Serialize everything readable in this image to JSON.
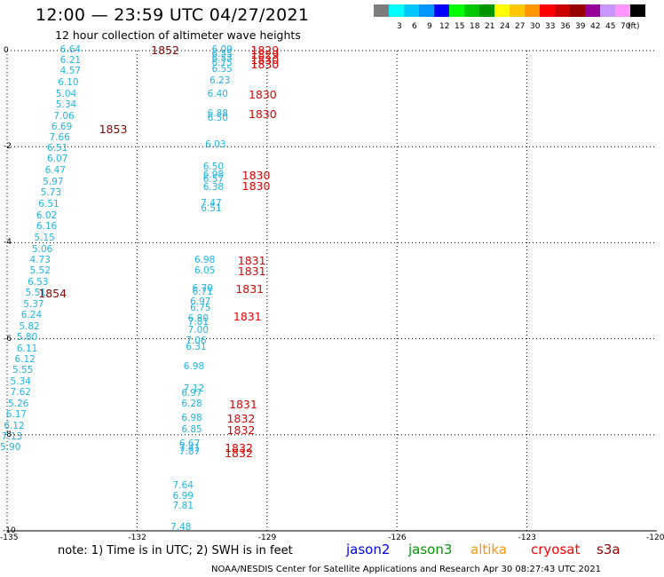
{
  "title": "12:00 — 23:59 UTC 04/27/2021",
  "subtitle": "12 hour collection of altimeter wave heights",
  "legend": {
    "unit": "(ft)",
    "swatches": [
      {
        "color": "#7d7d7d",
        "label": ""
      },
      {
        "color": "#00ffff",
        "label": "3"
      },
      {
        "color": "#00c8ff",
        "label": "6"
      },
      {
        "color": "#0096ff",
        "label": "9"
      },
      {
        "color": "#0000ff",
        "label": "12"
      },
      {
        "color": "#00ff00",
        "label": "15"
      },
      {
        "color": "#00c800",
        "label": "18"
      },
      {
        "color": "#009600",
        "label": "21"
      },
      {
        "color": "#ffff00",
        "label": "24"
      },
      {
        "color": "#ffc800",
        "label": "27"
      },
      {
        "color": "#ff9600",
        "label": "30"
      },
      {
        "color": "#ff0000",
        "label": "33"
      },
      {
        "color": "#c80000",
        "label": "36"
      },
      {
        "color": "#960000",
        "label": "39"
      },
      {
        "color": "#960096",
        "label": "42"
      },
      {
        "color": "#c896ff",
        "label": "45"
      },
      {
        "color": "#ff96ff",
        "label": "70"
      },
      {
        "color": "#000000",
        "label": ""
      }
    ]
  },
  "axes": {
    "y_ticks": [
      "0",
      "-2",
      "-4",
      "-6",
      "-8",
      "-10"
    ],
    "x_ticks": [
      "-135",
      "-132",
      "-129",
      "-126",
      "-123",
      "-120"
    ]
  },
  "map": {
    "lon_range": [
      -135,
      -120
    ],
    "lat_range": [
      -10,
      0
    ],
    "label_color": "#1fb4e6",
    "pass_colors": {
      "dark": "#8b0000",
      "red": "#e00000"
    },
    "observations": [
      {
        "lon": -133.9,
        "lat": 0.0,
        "v": "6.64"
      },
      {
        "lon": -133.9,
        "lat": -0.22,
        "v": "6.21"
      },
      {
        "lon": -133.9,
        "lat": -0.45,
        "v": "4.57"
      },
      {
        "lon": -133.95,
        "lat": -0.68,
        "v": "6.10"
      },
      {
        "lon": -134.0,
        "lat": -0.92,
        "v": "5.04"
      },
      {
        "lon": -134.0,
        "lat": -1.15,
        "v": "5.34"
      },
      {
        "lon": -134.05,
        "lat": -1.38,
        "v": "7.06"
      },
      {
        "lon": -134.1,
        "lat": -1.6,
        "v": "6.69"
      },
      {
        "lon": -134.15,
        "lat": -1.83,
        "v": "7.66"
      },
      {
        "lon": -134.2,
        "lat": -2.06,
        "v": "6.51"
      },
      {
        "lon": -134.2,
        "lat": -2.28,
        "v": "6.07"
      },
      {
        "lon": -134.25,
        "lat": -2.52,
        "v": "6.47"
      },
      {
        "lon": -134.3,
        "lat": -2.75,
        "v": "5.97"
      },
      {
        "lon": -134.35,
        "lat": -2.98,
        "v": "5.73"
      },
      {
        "lon": -134.4,
        "lat": -3.22,
        "v": "6.51"
      },
      {
        "lon": -134.45,
        "lat": -3.45,
        "v": "6.02"
      },
      {
        "lon": -134.45,
        "lat": -3.68,
        "v": "6.16"
      },
      {
        "lon": -134.5,
        "lat": -3.91,
        "v": "5.15"
      },
      {
        "lon": -134.55,
        "lat": -4.15,
        "v": "5.06"
      },
      {
        "lon": -134.6,
        "lat": -4.38,
        "v": "4.73"
      },
      {
        "lon": -134.6,
        "lat": -4.6,
        "v": "5.52"
      },
      {
        "lon": -134.65,
        "lat": -4.84,
        "v": "6.53"
      },
      {
        "lon": -134.7,
        "lat": -5.07,
        "v": "5.51"
      },
      {
        "lon": -134.75,
        "lat": -5.3,
        "v": "5.37"
      },
      {
        "lon": -134.8,
        "lat": -5.53,
        "v": "6.24"
      },
      {
        "lon": -134.85,
        "lat": -5.76,
        "v": "5.82"
      },
      {
        "lon": -134.9,
        "lat": -5.99,
        "v": "5.80"
      },
      {
        "lon": -134.9,
        "lat": -6.22,
        "v": "6.11"
      },
      {
        "lon": -134.95,
        "lat": -6.45,
        "v": "6.12"
      },
      {
        "lon": -135.0,
        "lat": -6.68,
        "v": "5.55"
      },
      {
        "lon": -135.05,
        "lat": -6.91,
        "v": "5.34"
      },
      {
        "lon": -135.05,
        "lat": -7.14,
        "v": "7.62"
      },
      {
        "lon": -135.1,
        "lat": -7.37,
        "v": "5.26"
      },
      {
        "lon": -135.15,
        "lat": -7.6,
        "v": "6.17"
      },
      {
        "lon": -135.2,
        "lat": -7.83,
        "v": "6.12"
      },
      {
        "lon": -135.25,
        "lat": -8.06,
        "v": "7.13"
      },
      {
        "lon": -135.3,
        "lat": -8.29,
        "v": "5.90"
      },
      {
        "lon": -130.4,
        "lat": 0.0,
        "v": "6.09"
      },
      {
        "lon": -130.4,
        "lat": -0.09,
        "v": "6.55"
      },
      {
        "lon": -130.4,
        "lat": -0.18,
        "v": "6.53"
      },
      {
        "lon": -130.4,
        "lat": -0.27,
        "v": "6.75"
      },
      {
        "lon": -130.4,
        "lat": -0.4,
        "v": "6.55"
      },
      {
        "lon": -130.45,
        "lat": -0.65,
        "v": "6.23"
      },
      {
        "lon": -130.5,
        "lat": -0.92,
        "v": "6.40"
      },
      {
        "lon": -130.5,
        "lat": -1.33,
        "v": "6.88"
      },
      {
        "lon": -130.5,
        "lat": -1.43,
        "v": "6.50"
      },
      {
        "lon": -130.55,
        "lat": -1.98,
        "v": "6.03"
      },
      {
        "lon": -130.6,
        "lat": -2.44,
        "v": "6.50"
      },
      {
        "lon": -130.6,
        "lat": -2.6,
        "v": "6.98"
      },
      {
        "lon": -130.6,
        "lat": -2.7,
        "v": "6.57"
      },
      {
        "lon": -130.6,
        "lat": -2.86,
        "v": "6.38"
      },
      {
        "lon": -130.65,
        "lat": -3.2,
        "v": "7.47"
      },
      {
        "lon": -130.65,
        "lat": -3.3,
        "v": "6.51"
      },
      {
        "lon": -130.8,
        "lat": -4.38,
        "v": "6.98"
      },
      {
        "lon": -130.8,
        "lat": -4.6,
        "v": "6.05"
      },
      {
        "lon": -130.85,
        "lat": -4.98,
        "v": "6.70"
      },
      {
        "lon": -130.85,
        "lat": -5.05,
        "v": "6.71"
      },
      {
        "lon": -130.9,
        "lat": -5.25,
        "v": "6.97"
      },
      {
        "lon": -130.9,
        "lat": -5.38,
        "v": "6.75"
      },
      {
        "lon": -130.95,
        "lat": -5.6,
        "v": "6.80"
      },
      {
        "lon": -130.95,
        "lat": -5.68,
        "v": "7.81"
      },
      {
        "lon": -130.95,
        "lat": -5.84,
        "v": "7.00"
      },
      {
        "lon": -131.0,
        "lat": -6.06,
        "v": "7.06"
      },
      {
        "lon": -131.0,
        "lat": -6.2,
        "v": "6.31"
      },
      {
        "lon": -131.05,
        "lat": -6.6,
        "v": "6.98"
      },
      {
        "lon": -131.05,
        "lat": -7.06,
        "v": "7.12"
      },
      {
        "lon": -131.1,
        "lat": -7.15,
        "v": "6.97"
      },
      {
        "lon": -131.1,
        "lat": -7.37,
        "v": "6.28"
      },
      {
        "lon": -131.1,
        "lat": -7.68,
        "v": "6.98"
      },
      {
        "lon": -131.1,
        "lat": -7.92,
        "v": "6.85"
      },
      {
        "lon": -131.15,
        "lat": -8.2,
        "v": "6.67"
      },
      {
        "lon": -131.15,
        "lat": -8.3,
        "v": "7.41"
      },
      {
        "lon": -131.15,
        "lat": -8.38,
        "v": "7.87"
      },
      {
        "lon": -131.3,
        "lat": -9.07,
        "v": "7.64"
      },
      {
        "lon": -131.3,
        "lat": -9.3,
        "v": "6.99"
      },
      {
        "lon": -131.3,
        "lat": -9.5,
        "v": "7.81"
      },
      {
        "lon": -131.35,
        "lat": -9.95,
        "v": "7.48"
      }
    ],
    "passes": [
      {
        "lon": -131.8,
        "lat": 0.0,
        "t": "1852",
        "c": "dark"
      },
      {
        "lon": -133.0,
        "lat": -1.65,
        "t": "1853",
        "c": "dark"
      },
      {
        "lon": -134.4,
        "lat": -5.07,
        "t": "1854",
        "c": "dark"
      },
      {
        "lon": -129.5,
        "lat": 0.0,
        "t": "1829",
        "c": "red"
      },
      {
        "lon": -129.5,
        "lat": -0.1,
        "t": "1829",
        "c": "red"
      },
      {
        "lon": -129.5,
        "lat": -0.2,
        "t": "1830",
        "c": "red"
      },
      {
        "lon": -129.5,
        "lat": -0.3,
        "t": "1830",
        "c": "red"
      },
      {
        "lon": -129.55,
        "lat": -0.92,
        "t": "1830",
        "c": "red"
      },
      {
        "lon": -129.55,
        "lat": -1.33,
        "t": "1830",
        "c": "red"
      },
      {
        "lon": -129.7,
        "lat": -2.6,
        "t": "1830",
        "c": "red"
      },
      {
        "lon": -129.7,
        "lat": -2.82,
        "t": "1830",
        "c": "red"
      },
      {
        "lon": -129.8,
        "lat": -4.38,
        "t": "1831",
        "c": "red"
      },
      {
        "lon": -129.8,
        "lat": -4.6,
        "t": "1831",
        "c": "red"
      },
      {
        "lon": -129.85,
        "lat": -4.98,
        "t": "1831",
        "c": "red"
      },
      {
        "lon": -129.9,
        "lat": -5.55,
        "t": "1831",
        "c": "red"
      },
      {
        "lon": -130.0,
        "lat": -7.37,
        "t": "1831",
        "c": "red"
      },
      {
        "lon": -130.05,
        "lat": -7.68,
        "t": "1832",
        "c": "red"
      },
      {
        "lon": -130.05,
        "lat": -7.92,
        "t": "1832",
        "c": "red"
      },
      {
        "lon": -130.1,
        "lat": -8.28,
        "t": "1832",
        "c": "red"
      },
      {
        "lon": -130.1,
        "lat": -8.4,
        "t": "1832",
        "c": "red"
      }
    ]
  },
  "note": "note:  1) Time is in UTC;  2) SWH is in feet",
  "satellites": [
    {
      "name": "jason2",
      "color": "#0000ff"
    },
    {
      "name": "jason3",
      "color": "#009600"
    },
    {
      "name": "altika",
      "color": "#ff9600"
    },
    {
      "name": "cryosat",
      "color": "#ff0000"
    },
    {
      "name": "s3a",
      "color": "#960000"
    }
  ],
  "credit": "NOAA/NESDIS Center for Satellite Applications and Research    Apr 30 08:27:43 UTC 2021"
}
